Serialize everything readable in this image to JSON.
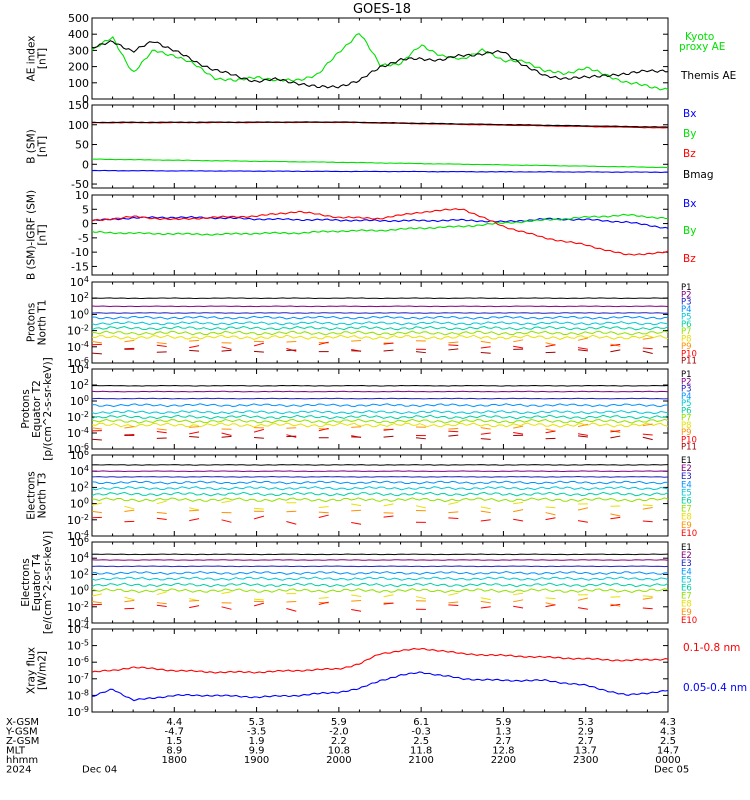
{
  "title": "GOES-18",
  "time_axis": {
    "start": "2024-12-04 17:00",
    "end": "2024-12-05 00:00",
    "tick_hhmm": [
      "1800",
      "1900",
      "2000",
      "2100",
      "2200",
      "2300",
      "0000"
    ],
    "row_labels": [
      "X-GSM",
      "Y-GSM",
      "Z-GSM",
      "MLT",
      "hhmm",
      "2024"
    ],
    "x_gsm": [
      "4.4",
      "5.3",
      "5.9",
      "6.1",
      "5.9",
      "5.3",
      "4.3"
    ],
    "y_gsm": [
      "-4.7",
      "-3.5",
      "-2.0",
      "-0.3",
      "1.3",
      "2.9",
      "4.3"
    ],
    "z_gsm": [
      "1.5",
      "1.9",
      "2.2",
      "2.5",
      "2.7",
      "2.7",
      "2.5"
    ],
    "mlt": [
      "8.9",
      "9.9",
      "10.8",
      "11.8",
      "12.8",
      "13.7",
      "14.7"
    ],
    "date_start": "Dec 04",
    "date_end": "Dec 05"
  },
  "chart_data": [
    {
      "type": "line",
      "ylabel": "AE index [nT]",
      "ylim": [
        0,
        500
      ],
      "yticks": [
        "0",
        "100",
        "200",
        "300",
        "400",
        "500"
      ],
      "legend": [
        "Kyoto proxy AE",
        "Themis AE"
      ],
      "series": [
        {
          "name": "Kyoto proxy AE",
          "color": "#00e000",
          "x": [
            "17:00",
            "17:15",
            "17:30",
            "17:45",
            "18:00",
            "18:15",
            "18:30",
            "18:45",
            "19:00",
            "19:15",
            "19:30",
            "19:45",
            "20:00",
            "20:15",
            "20:30",
            "20:45",
            "21:00",
            "21:15",
            "21:30",
            "21:45",
            "22:00",
            "22:15",
            "22:30",
            "22:45",
            "23:00",
            "23:15",
            "23:30",
            "23:45",
            "24:00"
          ],
          "values": [
            300,
            380,
            160,
            300,
            270,
            210,
            130,
            110,
            140,
            110,
            120,
            150,
            290,
            410,
            210,
            220,
            330,
            270,
            240,
            310,
            230,
            240,
            170,
            160,
            190,
            150,
            100,
            80,
            60
          ]
        },
        {
          "name": "Themis AE",
          "color": "#000000",
          "x": [
            "17:00",
            "17:15",
            "17:30",
            "17:45",
            "18:00",
            "18:15",
            "18:30",
            "18:45",
            "19:00",
            "19:15",
            "19:30",
            "19:45",
            "20:00",
            "20:15",
            "20:30",
            "20:45",
            "21:00",
            "21:15",
            "21:30",
            "21:45",
            "22:00",
            "22:15",
            "22:30",
            "22:45",
            "23:00",
            "23:15",
            "23:30",
            "23:45",
            "24:00"
          ],
          "values": [
            310,
            360,
            290,
            360,
            300,
            230,
            180,
            140,
            110,
            120,
            100,
            70,
            80,
            110,
            200,
            240,
            250,
            240,
            270,
            280,
            290,
            210,
            140,
            130,
            130,
            150,
            150,
            180,
            170
          ]
        }
      ]
    },
    {
      "type": "line",
      "ylabel": "B (SM) [nT]",
      "ylim": [
        -60,
        150
      ],
      "yticks": [
        "-50",
        "0",
        "50",
        "100",
        "150"
      ],
      "legend": [
        "Bx",
        "By",
        "Bz",
        "Bmag"
      ],
      "series": [
        {
          "name": "Bx",
          "color": "#0000ff",
          "x": [
            "17:00",
            "20:00",
            "24:00"
          ],
          "values": [
            -16,
            -18,
            -20
          ]
        },
        {
          "name": "By",
          "color": "#00e000",
          "x": [
            "17:00",
            "20:00",
            "24:00"
          ],
          "values": [
            13,
            5,
            -8
          ]
        },
        {
          "name": "Bz",
          "color": "#ff0000",
          "x": [
            "17:00",
            "20:00",
            "24:00"
          ],
          "values": [
            105,
            106,
            92
          ]
        },
        {
          "name": "Bmag",
          "color": "#000000",
          "x": [
            "17:00",
            "20:00",
            "24:00"
          ],
          "values": [
            106,
            107,
            94
          ]
        }
      ]
    },
    {
      "type": "line",
      "ylabel": "B (SM)-IGRF (SM) [nT]",
      "ylim": [
        -18,
        10
      ],
      "yticks": [
        "-15",
        "-10",
        "-5",
        "0",
        "5",
        "10"
      ],
      "legend": [
        "Bx",
        "By",
        "Bz"
      ],
      "series": [
        {
          "name": "Bx",
          "color": "#0000ff",
          "x": [
            "17:00",
            "17:30",
            "18:00",
            "18:30",
            "19:00",
            "19:30",
            "20:00",
            "20:30",
            "21:00",
            "21:30",
            "22:00",
            "22:30",
            "23:00",
            "23:30",
            "24:00"
          ],
          "values": [
            1.0,
            2.0,
            2.2,
            2.0,
            1.6,
            1.4,
            1.2,
            1.0,
            1.0,
            1.2,
            0.6,
            1.6,
            1.4,
            0.5,
            -1.6
          ]
        },
        {
          "name": "By",
          "color": "#00e000",
          "x": [
            "17:00",
            "17:30",
            "18:00",
            "18:30",
            "19:00",
            "19:30",
            "20:00",
            "20:30",
            "21:00",
            "21:30",
            "22:00",
            "22:30",
            "23:00",
            "23:30",
            "24:00"
          ],
          "values": [
            -3.0,
            -3.4,
            -3.6,
            -3.8,
            -3.4,
            -3.3,
            -2.6,
            -2.4,
            -1.6,
            -1.0,
            0.2,
            1.2,
            2.2,
            3.0,
            1.8
          ]
        },
        {
          "name": "Bz",
          "color": "#ff0000",
          "x": [
            "17:00",
            "17:30",
            "18:00",
            "18:30",
            "19:00",
            "19:30",
            "20:00",
            "20:30",
            "21:00",
            "21:30",
            "22:00",
            "22:30",
            "23:00",
            "23:30",
            "24:00"
          ],
          "values": [
            1.0,
            2.4,
            1.4,
            2.2,
            2.6,
            4.2,
            2.2,
            1.8,
            4.0,
            5.2,
            -1.0,
            -5.0,
            -7.5,
            -11.0,
            -10.0
          ]
        }
      ]
    },
    {
      "type": "line",
      "ylabel": "Protons North T1",
      "ylim": [
        -6,
        4
      ],
      "log_scale": true,
      "yticks": [
        "10^4",
        "10^2",
        "10^0",
        "10^-2",
        "10^-4",
        "10^-6"
      ],
      "channels": [
        {
          "name": "P1",
          "color": "#000000",
          "value": 100
        },
        {
          "name": "P2",
          "color": "#800080",
          "value": 10
        },
        {
          "name": "P3",
          "color": "#2020c0",
          "value": 1.5
        },
        {
          "name": "P4",
          "color": "#0090ff",
          "value": 0.4
        },
        {
          "name": "P5",
          "color": "#00c8d8",
          "value": 0.08
        },
        {
          "name": "P6",
          "color": "#00d0a0",
          "value": 0.02
        },
        {
          "name": "P7",
          "color": "#90e000",
          "value": 0.005
        },
        {
          "name": "P8",
          "color": "#e8e000",
          "value": 0.0015
        },
        {
          "name": "P9",
          "color": "#ff9000",
          "value": 0.0004
        },
        {
          "name": "P10",
          "color": "#ff0000",
          "value": 0.0001
        },
        {
          "name": "P11",
          "color": "#a00000",
          "value": 3e-05
        }
      ]
    },
    {
      "type": "line",
      "ylabel": "Protons Equator T2 [p/(cm^2-s-sr-keV)]",
      "ylim": [
        -6,
        4
      ],
      "log_scale": true,
      "yticks": [
        "10^4",
        "10^2",
        "10^0",
        "10^-2",
        "10^-4",
        "10^-6"
      ],
      "channels": [
        {
          "name": "P1",
          "color": "#000000",
          "value": 80
        },
        {
          "name": "P2",
          "color": "#800080",
          "value": 15
        },
        {
          "name": "P3",
          "color": "#2020c0",
          "value": 2
        },
        {
          "name": "P4",
          "color": "#0090ff",
          "value": 0.3
        },
        {
          "name": "P5",
          "color": "#00c8d8",
          "value": 0.04
        },
        {
          "name": "P6",
          "color": "#00d0a0",
          "value": 0.01
        },
        {
          "name": "P7",
          "color": "#90e000",
          "value": 0.003
        },
        {
          "name": "P8",
          "color": "#e8e000",
          "value": 0.001
        },
        {
          "name": "P9",
          "color": "#ff9000",
          "value": 0.0004
        },
        {
          "name": "P10",
          "color": "#ff0000",
          "value": 0.0001
        },
        {
          "name": "P11",
          "color": "#a00000",
          "value": 3e-05
        }
      ]
    },
    {
      "type": "line",
      "ylabel": "Electrons North T3",
      "ylim": [
        -4,
        6
      ],
      "log_scale": true,
      "yticks": [
        "10^6",
        "10^4",
        "10^2",
        "10^0",
        "10^-2",
        "10^-4"
      ],
      "channels": [
        {
          "name": "E1",
          "color": "#000000",
          "value": 60000
        },
        {
          "name": "E2",
          "color": "#800080",
          "value": 10000
        },
        {
          "name": "E3",
          "color": "#2020c0",
          "value": 2000
        },
        {
          "name": "E4",
          "color": "#0090ff",
          "value": 400
        },
        {
          "name": "E5",
          "color": "#00c8d8",
          "value": 80
        },
        {
          "name": "E6",
          "color": "#00d0a0",
          "value": 15
        },
        {
          "name": "E7",
          "color": "#90e000",
          "value": 3
        },
        {
          "name": "E8",
          "color": "#e8e000",
          "value": 0.6
        },
        {
          "name": "E9",
          "color": "#ff9000",
          "value": 0.1
        },
        {
          "name": "E10",
          "color": "#ff0000",
          "value": 0.01
        }
      ]
    },
    {
      "type": "line",
      "ylabel": "Electrons Equator T4 [e/(cm^2-s-sr-keV)]",
      "ylim": [
        -4,
        6
      ],
      "log_scale": true,
      "yticks": [
        "10^6",
        "10^4",
        "10^2",
        "10^0",
        "10^-2",
        "10^-4"
      ],
      "channels": [
        {
          "name": "E1",
          "color": "#000000",
          "value": 30000
        },
        {
          "name": "E2",
          "color": "#800080",
          "value": 6000
        },
        {
          "name": "E3",
          "color": "#2020c0",
          "value": 1000
        },
        {
          "name": "E4",
          "color": "#0090ff",
          "value": 150
        },
        {
          "name": "E5",
          "color": "#00c8d8",
          "value": 30
        },
        {
          "name": "E6",
          "color": "#00d0a0",
          "value": 5
        },
        {
          "name": "E7",
          "color": "#90e000",
          "value": 1
        },
        {
          "name": "E8",
          "color": "#e8e000",
          "value": 0.2
        },
        {
          "name": "E9",
          "color": "#ff9000",
          "value": 0.04
        },
        {
          "name": "E10",
          "color": "#ff0000",
          "value": 0.01
        }
      ]
    },
    {
      "type": "line",
      "ylabel": "Xray flux [W/m2]",
      "ylim": [
        -9,
        -4
      ],
      "log_scale": true,
      "yticks": [
        "10^-4",
        "10^-5",
        "10^-6",
        "10^-7",
        "10^-8",
        "10^-9"
      ],
      "legend": [
        "0.1-0.8 nm",
        "0.05-0.4 nm"
      ],
      "series": [
        {
          "name": "0.1-0.8 nm",
          "color": "#ff0000",
          "x": [
            "17:00",
            "17:15",
            "17:30",
            "18:00",
            "18:30",
            "19:00",
            "19:30",
            "20:00",
            "20:15",
            "20:30",
            "20:45",
            "21:00",
            "21:15",
            "21:30",
            "22:00",
            "22:30",
            "23:00",
            "23:30",
            "24:00"
          ],
          "log10_values": [
            -6.6,
            -6.5,
            -6.3,
            -6.5,
            -6.6,
            -6.6,
            -6.5,
            -6.4,
            -6.1,
            -5.5,
            -5.3,
            -5.2,
            -5.3,
            -5.5,
            -5.6,
            -5.7,
            -5.8,
            -5.9,
            -5.8
          ]
        },
        {
          "name": "0.05-0.4 nm",
          "color": "#0000ff",
          "x": [
            "17:00",
            "17:15",
            "17:30",
            "18:00",
            "18:30",
            "19:00",
            "19:30",
            "20:00",
            "20:15",
            "20:30",
            "20:45",
            "21:00",
            "21:15",
            "21:30",
            "22:00",
            "22:30",
            "23:00",
            "23:30",
            "24:00"
          ],
          "log10_values": [
            -8.1,
            -7.6,
            -8.3,
            -8.0,
            -8.0,
            -8.1,
            -8.0,
            -7.8,
            -7.6,
            -7.1,
            -6.8,
            -6.6,
            -6.8,
            -7.0,
            -7.1,
            -7.1,
            -7.4,
            -8.0,
            -7.7
          ]
        }
      ]
    }
  ]
}
